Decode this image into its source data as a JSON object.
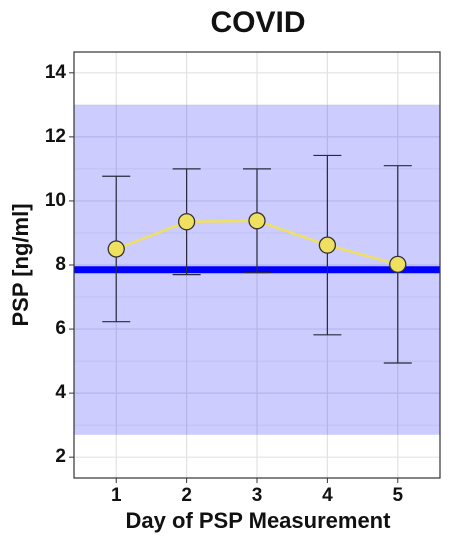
{
  "chart_data": {
    "type": "line",
    "title": "COVID",
    "x_label": "Day of PSP Measurement",
    "y_label": "PSP [ng/ml]",
    "categories": [
      "1",
      "2",
      "3",
      "4",
      "5"
    ],
    "values": [
      8.5,
      9.35,
      9.38,
      8.62,
      8.02
    ],
    "errors": [
      2.27,
      1.65,
      1.62,
      2.8,
      3.08
    ],
    "color": "#f0e060",
    "reference_line": 7.85,
    "reference_line_color": "#0000ff",
    "reference_band": [
      2.7,
      13.0
    ],
    "reference_band_color": "#0000ff",
    "ylim": [
      1.35,
      14.65
    ],
    "yticks": [
      2,
      4,
      6,
      8,
      10,
      12,
      14
    ],
    "grid": true
  }
}
